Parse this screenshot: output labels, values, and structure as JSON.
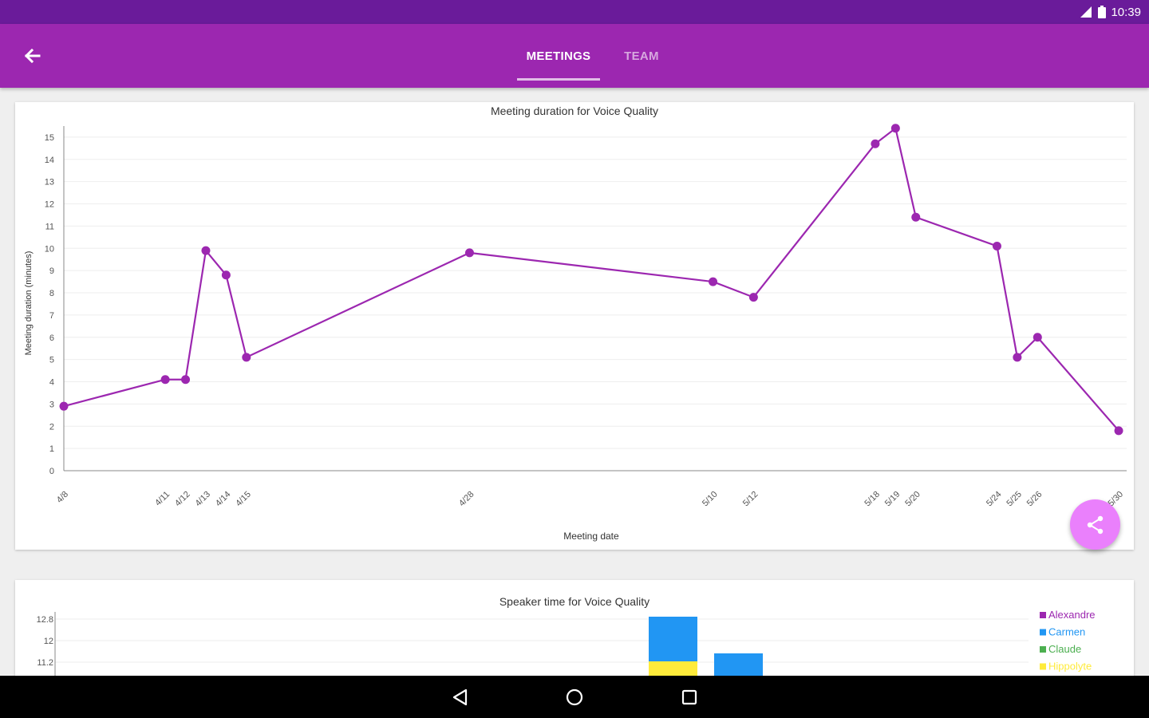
{
  "status_bar": {
    "time": "10:39",
    "icons": [
      "signal-icon",
      "battery-icon"
    ]
  },
  "app_bar": {
    "back_icon": "arrow-back-icon",
    "tabs": [
      {
        "label": "MEETINGS",
        "selected": true
      },
      {
        "label": "TEAM",
        "selected": false
      }
    ]
  },
  "colors": {
    "primary": "#9c27b0",
    "primary_dark": "#6a1b9a",
    "accent": "#ea80fc",
    "line": "#9c27b0"
  },
  "chart_data": [
    {
      "type": "line",
      "title": "Meeting duration for Voice Quality",
      "xlabel": "Meeting date",
      "ylabel": "Meeting duration (minutes)",
      "ylim": [
        0,
        15.5
      ],
      "yticks": [
        0,
        1,
        2,
        3,
        4,
        5,
        6,
        7,
        8,
        9,
        10,
        11,
        12,
        13,
        14,
        15
      ],
      "x_range_days": [
        8,
        60
      ],
      "x_tick_labels": [
        "4/8",
        "4/11",
        "4/12",
        "4/13",
        "4/14",
        "4/15",
        "4/28",
        "5/10",
        "5/12",
        "5/18",
        "5/19",
        "5/20",
        "5/24",
        "5/25",
        "5/26",
        "5/30"
      ],
      "grid": true,
      "points": [
        {
          "label": "4/8",
          "day": 8,
          "y": 2.9
        },
        {
          "label": "4/11",
          "day": 13,
          "y": 4.1
        },
        {
          "label": "4/12",
          "day": 14,
          "y": 4.1
        },
        {
          "label": "4/13",
          "day": 15,
          "y": 9.9
        },
        {
          "label": "4/14",
          "day": 16,
          "y": 8.8
        },
        {
          "label": "4/15",
          "day": 17,
          "y": 5.1
        },
        {
          "label": "4/28",
          "day": 28,
          "y": 9.8
        },
        {
          "label": "5/10",
          "day": 40,
          "y": 8.5
        },
        {
          "label": "5/12",
          "day": 42,
          "y": 7.8
        },
        {
          "label": "5/18",
          "day": 48,
          "y": 14.7
        },
        {
          "label": "5/19",
          "day": 49,
          "y": 15.4
        },
        {
          "label": "5/20",
          "day": 50,
          "y": 11.4
        },
        {
          "label": "5/24",
          "day": 54,
          "y": 10.1
        },
        {
          "label": "5/25",
          "day": 55,
          "y": 5.1
        },
        {
          "label": "5/26",
          "day": 56,
          "y": 6.0
        },
        {
          "label": "5/30",
          "day": 60,
          "y": 1.8
        }
      ]
    },
    {
      "type": "bar",
      "stacked": true,
      "title": "Speaker time for Voice Quality",
      "visible_yticks": [
        12.8,
        12.0,
        11.2
      ],
      "legend_position": "top-right",
      "legend": [
        {
          "name": "Alexandre",
          "color": "#9c27b0"
        },
        {
          "name": "Carmen",
          "color": "#2196f3"
        },
        {
          "name": "Claude",
          "color": "#4caf50"
        },
        {
          "name": "Hippolyte",
          "color": "#ffeb3b"
        }
      ]
    }
  ]
}
